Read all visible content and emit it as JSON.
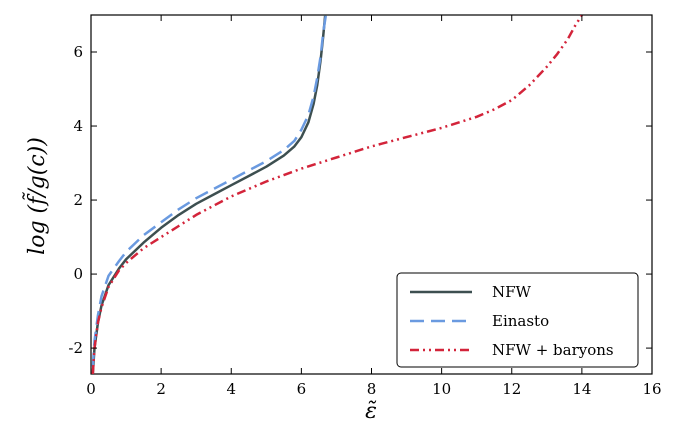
{
  "chart_data": {
    "type": "line",
    "xlabel": "ε̃",
    "ylabel": "log (f̃/g(c))",
    "xlim": [
      0,
      16
    ],
    "ylim": [
      -2.7,
      7
    ],
    "xticks": [
      0,
      2,
      4,
      6,
      8,
      10,
      12,
      14,
      16
    ],
    "yticks": [
      -2,
      0,
      2,
      4,
      6
    ],
    "xtick_labels": [
      "0",
      "2",
      "4",
      "6",
      "8",
      "10",
      "12",
      "14",
      "16"
    ],
    "ytick_labels": [
      "-2",
      "0",
      "2",
      "4",
      "6"
    ],
    "legend_position": "lower-right",
    "series": [
      {
        "name": "NFW",
        "color": "#3d4f50",
        "style": "solid",
        "x": [
          0.05,
          0.1,
          0.2,
          0.3,
          0.5,
          0.8,
          1.0,
          1.5,
          2.0,
          2.5,
          3.0,
          3.5,
          4.0,
          4.5,
          5.0,
          5.5,
          5.8,
          6.0,
          6.2,
          6.35,
          6.45,
          6.55,
          6.62,
          6.68
        ],
        "y": [
          -2.7,
          -2.0,
          -1.3,
          -0.85,
          -0.3,
          0.15,
          0.4,
          0.85,
          1.25,
          1.6,
          1.9,
          2.15,
          2.4,
          2.65,
          2.9,
          3.2,
          3.45,
          3.7,
          4.1,
          4.6,
          5.1,
          5.8,
          6.4,
          7.0
        ]
      },
      {
        "name": "Einasto",
        "color": "#6a9ae0",
        "style": "dashed",
        "x": [
          0.05,
          0.1,
          0.2,
          0.3,
          0.5,
          0.8,
          1.0,
          1.5,
          2.0,
          2.5,
          3.0,
          3.5,
          4.0,
          4.5,
          5.0,
          5.5,
          5.8,
          6.0,
          6.2,
          6.35,
          6.45,
          6.55,
          6.62,
          6.7
        ],
        "y": [
          -2.5,
          -1.8,
          -1.1,
          -0.6,
          -0.05,
          0.35,
          0.6,
          1.05,
          1.4,
          1.75,
          2.05,
          2.3,
          2.55,
          2.8,
          3.05,
          3.35,
          3.6,
          3.9,
          4.3,
          4.8,
          5.3,
          5.9,
          6.5,
          7.0
        ]
      },
      {
        "name": "NFW + baryons",
        "color": "#d3243a",
        "style": "dashdot",
        "x": [
          0.05,
          0.1,
          0.2,
          0.3,
          0.5,
          0.8,
          1.0,
          1.5,
          2.0,
          2.5,
          3.0,
          4.0,
          5.0,
          6.0,
          7.0,
          8.0,
          9.0,
          10.0,
          11.0,
          11.5,
          12.0,
          12.5,
          13.0,
          13.3,
          13.6,
          13.8,
          14.0
        ],
        "y": [
          -2.7,
          -2.0,
          -1.3,
          -0.9,
          -0.35,
          0.1,
          0.3,
          0.7,
          1.0,
          1.3,
          1.6,
          2.1,
          2.5,
          2.85,
          3.15,
          3.45,
          3.7,
          3.95,
          4.25,
          4.45,
          4.7,
          5.1,
          5.6,
          5.95,
          6.35,
          6.7,
          7.0
        ]
      }
    ]
  }
}
